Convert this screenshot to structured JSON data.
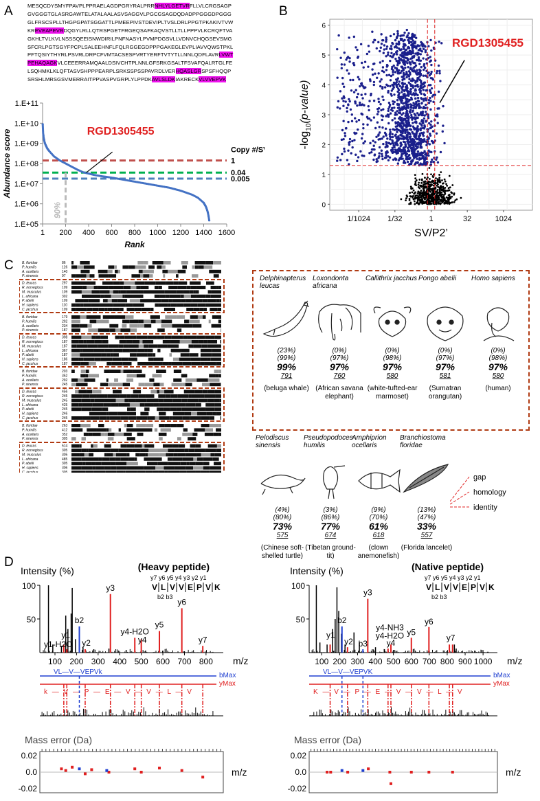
{
  "panels": {
    "a": "A",
    "b": "B",
    "c": "C",
    "d": "D"
  },
  "panel_a": {
    "sequence": [
      {
        "t": "MESQCDYSMYFPAVPLPPRAELAGDPGRYRALPRR"
      },
      {
        "t": "NHLYLGETVR",
        "hl": true
      },
      {
        "t": "FLLVLCRGSAGPGVGGGTGLASRGAWTELATALAALASVSAGGVLPGCGSAGDQDADPPGGGDPGGGGLFRSCSPLLTHGPGPATSGGATTLPMEEPIVSTDEVIPLTVSLDRLPPGTPKAKIVTVWKR"
      },
      {
        "t": "EVEAPEVR",
        "hl": true
      },
      {
        "t": "DQGYLRLLQTRSPGETFRGEQSAFKAQVSTLLTLLPPPVLKCRQFTVAGKHLTVLKVLNSSSQEEISNWDIRILPNFNASYLPVMPDGSVLLVDNVCHQGSEVSMGSFCRLPGTSGYFPCPLSALEEHNFLFQLRGGEGDPPPGAKEGLEVPLIAVVQWSTPKLPFTQSIYTHYRLPSVRLDRPCFVMTACSESPVRTYERFTVTYTLLNNLQDFLAVR"
      },
      {
        "t": "LVWTPEHAQAGK",
        "hl": true
      },
      {
        "t": "VLCEEERRAMQAALDSIVCHTPLNNLGFSRKGSALTFSVAFQALRTGLFELSQHMKLKLQFTASVSHPPPEARPLSRKSSPSSPAVRDLVER"
      },
      {
        "t": "HQASLGR",
        "hl": true
      },
      {
        "t": "SPSFHQQPSRSHLMRSGSVMERRAITPPVASPVGRPLYLPPDK"
      },
      {
        "t": "AVLSLDK",
        "hl": true
      },
      {
        "t": "IAKRECK"
      },
      {
        "t": "VLVVEPVK",
        "hl": true
      }
    ],
    "chart_data": {
      "type": "line",
      "title": "",
      "xlabel": "Rank",
      "ylabel": "Abundance score",
      "xlim": [
        0,
        1600
      ],
      "x_ticks": [
        "1",
        "200",
        "400",
        "600",
        "800",
        "1000",
        "1200",
        "1400",
        "1600"
      ],
      "y_ticks": [
        "1.E+05",
        "1.E+06",
        "1.E+07",
        "1.E+08",
        "1.E+09",
        "1.E+10",
        "1.E+11"
      ],
      "ylim_log10": [
        5,
        11
      ],
      "series": [
        {
          "name": "Abundance",
          "color": "#4472c4",
          "x": [
            1,
            5,
            10,
            20,
            40,
            60,
            100,
            150,
            200,
            250,
            300,
            350,
            400,
            450,
            500,
            600,
            700,
            800,
            900,
            1000,
            1100,
            1200,
            1300,
            1350,
            1400,
            1420,
            1435,
            1445,
            1450
          ],
          "log10y": [
            9.95,
            9.5,
            9.25,
            9.0,
            8.75,
            8.6,
            8.35,
            8.15,
            8.0,
            7.85,
            7.7,
            7.57,
            7.5,
            7.43,
            7.38,
            7.3,
            7.2,
            7.1,
            7.0,
            6.9,
            6.8,
            6.65,
            6.45,
            6.3,
            6.05,
            5.85,
            5.6,
            5.3,
            5.1
          ]
        }
      ],
      "thresholds": [
        {
          "label": "1",
          "log10y": 8.15,
          "color": "#c0504d"
        },
        {
          "label": "0.04",
          "log10y": 7.55,
          "color": "#00b050"
        },
        {
          "label": "0.005",
          "log10y": 7.25,
          "color": "#4f81bd"
        }
      ],
      "vline": {
        "x": 200,
        "label": "90%"
      },
      "legend_title": "Copy #/SV",
      "annotation": {
        "label": "RGD1305455",
        "x": 380,
        "log10y": 7.55
      }
    }
  },
  "panel_b": {
    "chart_data": {
      "type": "scatter",
      "xlabel": "SV/P2’",
      "ylabel_prefix": "-log",
      "ylabel_sub": "10",
      "ylabel_suffix": "(p-value)",
      "x_ticks": [
        "1/1024",
        "1/32",
        "1",
        "32",
        "1024"
      ],
      "x_tick_log2": [
        -10,
        -5,
        0,
        5,
        10
      ],
      "xlim_log2": [
        -14,
        14
      ],
      "y_ticks": [
        "0",
        "1",
        "2",
        "3",
        "4",
        "5",
        "6"
      ],
      "ylim": [
        -0.2,
        6.2
      ],
      "thresholds": {
        "x_log2": [
          -0.5,
          0.5
        ],
        "y": 1.3
      },
      "point_count_sig": 1400,
      "point_count_nonsig": 520,
      "sig_color": "#1a1f8c",
      "nonsig_color": "#000000",
      "annotation": {
        "label": "RGD1305455",
        "x_log2": 1.2,
        "y": 3.4,
        "color": "#e02020"
      }
    }
  },
  "panel_c": {
    "alignment_species": [
      "B. floridae",
      "P. humilis",
      "A. ocellaris",
      "P. sinensis",
      "D. leucas",
      "R. norvegicus",
      "M. musculus",
      "L. africana",
      "P. abelii",
      "H. sapiens",
      "C. jacchus"
    ],
    "blocks": [
      {
        "pos": [
          "86",
          "126",
          "140",
          "97",
          "297",
          "109",
          "109",
          "302",
          "109",
          "110",
          "109"
        ]
      },
      {
        "pos": [
          "179",
          "292",
          "234",
          "187",
          "398",
          "187",
          "187",
          "367",
          "187",
          "186",
          "187"
        ]
      },
      {
        "pos": [
          "203",
          "352",
          "292",
          "245",
          "456",
          "245",
          "245",
          "425",
          "245",
          "246",
          "245"
        ]
      },
      {
        "pos": [
          "263",
          "412",
          "352",
          "305",
          "514",
          "305",
          "305",
          "485",
          "305",
          "306",
          "305"
        ]
      }
    ],
    "mammals": [
      {
        "latin": "Delphinapterus leucas",
        "gap": "(23%)",
        "homology": "(99%)",
        "identity": "99%",
        "length": "791",
        "common": "(beluga whale)"
      },
      {
        "latin": "Loxondonta africana",
        "gap": "(0%)",
        "homology": "(97%)",
        "identity": "97%",
        "length": "760",
        "common": "(African savana elephant)"
      },
      {
        "latin": "Callithrix jacchus",
        "gap": "(0%)",
        "homology": "(98%)",
        "identity": "97%",
        "length": "580",
        "common": "(white-tufted-ear marmoset)"
      },
      {
        "latin": "Pongo abelii",
        "gap": "(0%)",
        "homology": "(97%)",
        "identity": "97%",
        "length": "581",
        "common": "(Sumatran orangutan)"
      },
      {
        "latin": "Homo sapiens",
        "gap": "(0%)",
        "homology": "(98%)",
        "identity": "97%",
        "length": "580",
        "common": "(human)"
      }
    ],
    "others": [
      {
        "latin": "Pelodiscus sinensis",
        "gap": "(4%)",
        "homology": "(80%)",
        "identity": "73%",
        "length": "575",
        "common": "(Chinese soft-shelled turtle)"
      },
      {
        "latin": "Pseudopodoces humilis",
        "gap": "(3%)",
        "homology": "(86%)",
        "identity": "77%",
        "length": "674",
        "common": "(Tibetan ground-tit)"
      },
      {
        "latin": "Amphiprion ocellaris",
        "gap": "(9%)",
        "homology": "(70%)",
        "identity": "61%",
        "length": "618",
        "common": "(clown anemonefish)"
      },
      {
        "latin": "Branchiostoma floridae",
        "gap": "(13%)",
        "homology": "(47%)",
        "identity": "33%",
        "length": "557",
        "common": "(Florida lancelet)"
      }
    ],
    "legend": {
      "gap": "gap",
      "homology": "homology",
      "identity": "identity"
    }
  },
  "panel_d": {
    "heavy": {
      "title": "(Heavy peptide)",
      "y_label": "Intensity (%)",
      "x_label": "m/z",
      "sequence": [
        "V",
        "L",
        "V",
        "V",
        "E",
        "P",
        "V",
        "K"
      ],
      "y_ions": "y7 y6 y5 y4 y3 y2 y1",
      "b_ions": "b2 b3",
      "x_ticks": [
        "100",
        "200",
        "300",
        "400",
        "500",
        "600",
        "700",
        "800"
      ],
      "y_ticks": [
        "100",
        "50"
      ],
      "xlim": [
        30,
        880
      ],
      "peaks_black": [
        [
          70,
          100
        ],
        [
          90,
          12
        ],
        [
          130,
          10
        ],
        [
          150,
          55
        ],
        [
          160,
          35
        ],
        [
          175,
          58
        ],
        [
          180,
          96
        ],
        [
          195,
          20
        ],
        [
          230,
          8
        ],
        [
          280,
          5
        ],
        [
          350,
          6
        ],
        [
          430,
          4
        ],
        [
          470,
          5
        ],
        [
          520,
          3
        ],
        [
          600,
          3
        ],
        [
          700,
          2
        ]
      ],
      "peaks_red": [
        [
          141,
          12
        ],
        [
          155,
          5
        ],
        [
          240,
          5
        ],
        [
          357,
          87
        ],
        [
          470,
          22
        ],
        [
          500,
          20
        ],
        [
          584,
          32
        ],
        [
          688,
          66
        ],
        [
          785,
          10
        ]
      ],
      "peaks_blue": [
        [
          213,
          39
        ]
      ],
      "labels": [
        {
          "t": "y1",
          "x": 150,
          "y": 22
        },
        {
          "t": "y1-H2O",
          "x": 115,
          "y": 8
        },
        {
          "t": "b2",
          "x": 213,
          "y": 44
        },
        {
          "t": "y2",
          "x": 245,
          "y": 10
        },
        {
          "t": "y3",
          "x": 357,
          "y": 92
        },
        {
          "t": "y4-H2O",
          "x": 470,
          "y": 27
        },
        {
          "t": "y4",
          "x": 505,
          "y": 15
        },
        {
          "t": "y5",
          "x": 584,
          "y": 37
        },
        {
          "t": "y6",
          "x": 688,
          "y": 71
        },
        {
          "t": "y7",
          "x": 785,
          "y": 15
        }
      ],
      "ladder_b": "VL—V—VEPVk",
      "ladder_y": "k — V — P — E — V — V — L — V",
      "bmax": "bMax",
      "ymax": "yMax",
      "err_label": "Mass error (Da)",
      "err_ticks": [
        "0.02",
        "0.0",
        "-0.02"
      ],
      "errors_red": [
        [
          130,
          0.004
        ],
        [
          150,
          0.002
        ],
        [
          180,
          0.006
        ],
        [
          240,
          -0.002
        ],
        [
          270,
          0.003
        ],
        [
          350,
          0.0
        ],
        [
          470,
          0.004
        ],
        [
          500,
          0.0
        ],
        [
          584,
          0.005
        ],
        [
          688,
          0.002
        ],
        [
          785,
          -0.006
        ]
      ],
      "errors_blue": [
        [
          213,
          0.004
        ],
        [
          340,
          0.002
        ]
      ]
    },
    "native": {
      "title": "(Native peptide)",
      "y_label": "Intensity (%)",
      "x_label": "m/z",
      "sequence": [
        "V",
        "L",
        "V",
        "V",
        "E",
        "P",
        "V",
        "K"
      ],
      "y_ions": "y7 y6 y5 y4 y3 y2 y1",
      "b_ions": "b2 b3",
      "x_ticks": [
        "100",
        "200",
        "300",
        "400",
        "500",
        "600",
        "700",
        "800",
        "900",
        "1000"
      ],
      "y_ticks": [
        "100",
        "50"
      ],
      "xlim": [
        30,
        1080
      ],
      "peaks_black": [
        [
          70,
          100
        ],
        [
          90,
          15
        ],
        [
          130,
          12
        ],
        [
          160,
          35
        ],
        [
          175,
          50
        ],
        [
          185,
          97
        ],
        [
          195,
          62
        ],
        [
          210,
          28
        ],
        [
          230,
          12
        ],
        [
          280,
          30
        ],
        [
          310,
          15
        ],
        [
          400,
          8
        ],
        [
          450,
          5
        ],
        [
          500,
          4
        ],
        [
          600,
          4
        ],
        [
          700,
          3
        ],
        [
          830,
          8
        ],
        [
          840,
          12
        ],
        [
          850,
          6
        ]
      ],
      "peaks_red": [
        [
          147,
          12
        ],
        [
          244,
          8
        ],
        [
          357,
          80
        ],
        [
          470,
          6
        ],
        [
          486,
          12
        ],
        [
          600,
          22
        ],
        [
          698,
          38
        ],
        [
          812,
          12
        ],
        [
          830,
          12
        ]
      ],
      "peaks_blue": [
        [
          213,
          39
        ],
        [
          330,
          5
        ]
      ],
      "labels": [
        {
          "t": "y1",
          "x": 150,
          "y": 22
        },
        {
          "t": "b2",
          "x": 213,
          "y": 44
        },
        {
          "t": "y2",
          "x": 250,
          "y": 12
        },
        {
          "t": "b3",
          "x": 330,
          "y": 9
        },
        {
          "t": "y3",
          "x": 357,
          "y": 85
        },
        {
          "t": "y4-NH3",
          "x": 480,
          "y": 33
        },
        {
          "t": "y4-H2O",
          "x": 480,
          "y": 21
        },
        {
          "t": "y4",
          "x": 486,
          "y": 10
        },
        {
          "t": "y5",
          "x": 600,
          "y": 26
        },
        {
          "t": "y6",
          "x": 698,
          "y": 42
        },
        {
          "t": "y7",
          "x": 820,
          "y": 18
        }
      ],
      "ladder_b": "VL—V—VEPVK",
      "ladder_y": "K — V — P — E — V — V — L — V",
      "bmax": "bMax",
      "ymax": "yMax",
      "err_label": "Mass error (Da)",
      "err_ticks": [
        "0.02",
        "0.0",
        "-0.02"
      ],
      "errors_red": [
        [
          130,
          0.0
        ],
        [
          150,
          0.0
        ],
        [
          245,
          0.0
        ],
        [
          360,
          0.004
        ],
        [
          480,
          0.0
        ],
        [
          486,
          -0.014
        ],
        [
          600,
          0.0
        ],
        [
          698,
          0.0
        ],
        [
          830,
          0.0
        ]
      ],
      "errors_blue": [
        [
          213,
          0.002
        ],
        [
          330,
          0.002
        ]
      ]
    }
  },
  "colors": {
    "red": "#e02020",
    "blue": "#1f3fd0",
    "dkred": "#b03a12",
    "plotblue": "#4472c4"
  }
}
